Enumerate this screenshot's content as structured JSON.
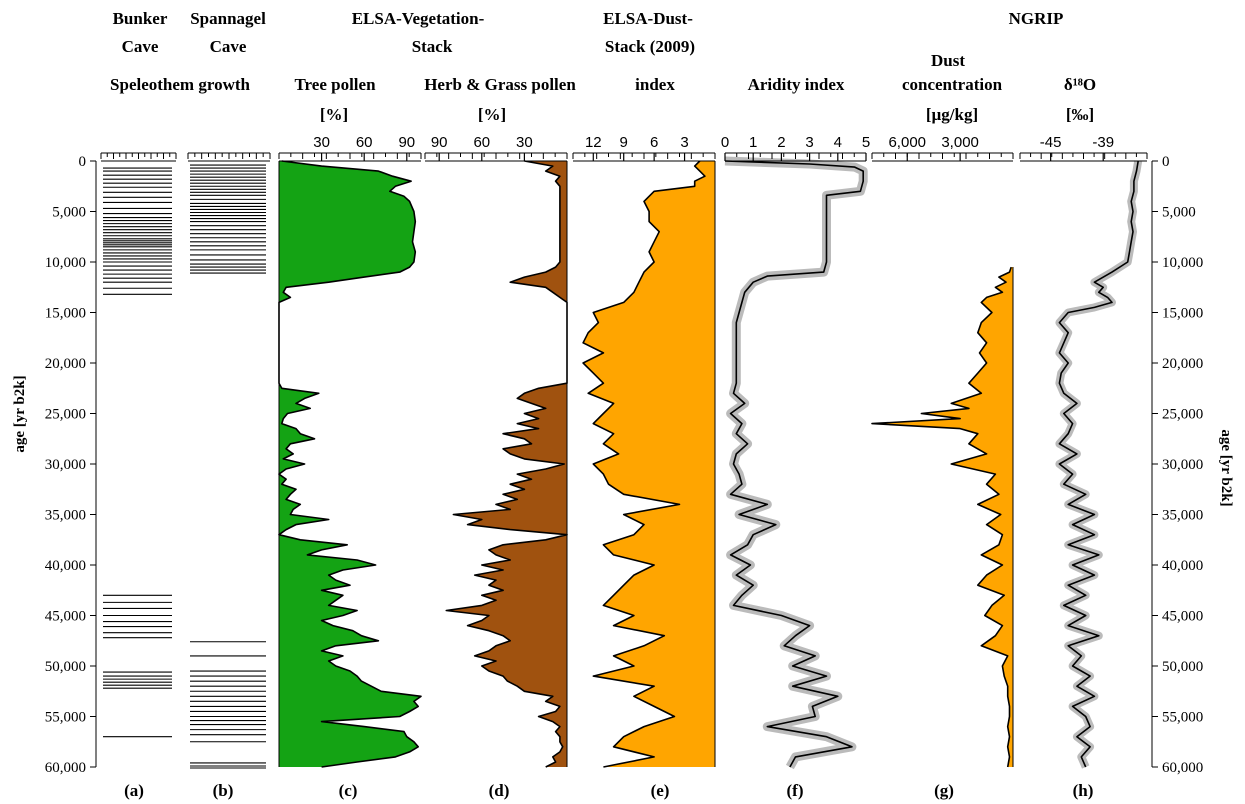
{
  "headers": {
    "bunker": [
      "Bunker",
      "Cave"
    ],
    "spannagel": [
      "Spannagel",
      "Cave"
    ],
    "elsa_veg": [
      "ELSA-Vegetation-",
      "Stack"
    ],
    "elsa_dust": [
      "ELSA-Dust-",
      "Stack (2009)"
    ],
    "ngrip": "NGRIP",
    "speleothem": "Speleothem growth",
    "tree": "Tree pollen",
    "herb": "Herb & Grass pollen",
    "index": "index",
    "aridity": "Aridity index",
    "dust": [
      "Dust",
      "concentration"
    ],
    "d18o": "δ¹⁸O"
  },
  "units": {
    "tree": "[%]",
    "herb": "[%]",
    "dust": "[µg/kg]",
    "d18o": "[‰]"
  },
  "age_axis": {
    "left_title": "age [yr b2k]",
    "right_title": "age [yr b2k]",
    "ticks": [
      "0",
      "5,000",
      "10,000",
      "15,000",
      "20,000",
      "25,000",
      "30,000",
      "35,000",
      "40,000",
      "45,000",
      "50,000",
      "55,000",
      "60,000"
    ]
  },
  "panel_labels": [
    "(a)",
    "(b)",
    "(c)",
    "(d)",
    "(e)",
    "(f)",
    "(g)",
    "(h)"
  ],
  "colors": {
    "tree_fill": "#14a314",
    "herb_fill": "#a0520f",
    "dust_fill": "#ffa500",
    "aridity_band": "#bbbbbb",
    "d18o_band": "#bbbbbb",
    "line": "#000000"
  },
  "chart_data": [
    {
      "type": "stripe",
      "panel": "(a)",
      "title": "Bunker Cave",
      "subtitle": "Speleothem growth",
      "growth_ages": [
        700,
        1000,
        1400,
        1800,
        2200,
        2600,
        3100,
        3600,
        4100,
        4700,
        5200,
        5600,
        5900,
        6200,
        6500,
        6800,
        7100,
        7400,
        7700,
        7900,
        8100,
        8300,
        8500,
        8800,
        9100,
        9400,
        9700,
        10000,
        10400,
        10800,
        11200,
        11600,
        12000,
        12600,
        13200,
        43000,
        43700,
        44300,
        45000,
        45600,
        46100,
        46700,
        47200,
        50600,
        51000,
        51300,
        51600,
        51900,
        52200,
        57000
      ]
    },
    {
      "type": "stripe",
      "panel": "(b)",
      "title": "Spannagel Cave",
      "subtitle": "Speleothem growth",
      "growth_ages": [
        400,
        700,
        1000,
        1300,
        1600,
        1900,
        2200,
        2500,
        2800,
        3100,
        3400,
        3800,
        4200,
        4500,
        4800,
        5100,
        5400,
        5700,
        6000,
        6400,
        6800,
        7200,
        7600,
        8000,
        8400,
        8800,
        9300,
        9800,
        10200,
        10500,
        10800,
        11100,
        47600,
        49000,
        50500,
        51000,
        51500,
        52000,
        52500,
        53000,
        53500,
        54000,
        54500,
        55000,
        55400,
        55800,
        56300,
        56800,
        57500,
        59600,
        59900,
        60100
      ]
    },
    {
      "type": "area",
      "panel": "(c)",
      "title": "ELSA-Vegetation-Stack",
      "subtitle": "Tree pollen",
      "unit": "[%]",
      "xlim": [
        0,
        100
      ],
      "x_ticks": [
        30,
        60,
        90
      ],
      "y_axis": "age [yr b2k]",
      "ylim": [
        0,
        60000
      ],
      "y": [
        0,
        500,
        1000,
        1500,
        2000,
        2500,
        3000,
        3500,
        4000,
        5000,
        6000,
        7000,
        8000,
        9000,
        10000,
        10500,
        11000,
        11500,
        12000,
        12500,
        13000,
        13500,
        14000,
        22000,
        22500,
        23000,
        23500,
        24000,
        24500,
        25000,
        25500,
        26000,
        26500,
        27000,
        27500,
        28000,
        28500,
        29000,
        29500,
        30000,
        30500,
        31000,
        31500,
        32000,
        32500,
        33000,
        33500,
        34000,
        34500,
        35000,
        35500,
        36000,
        36500,
        37000,
        37500,
        38000,
        38500,
        39000,
        39500,
        40000,
        40500,
        41000,
        41500,
        42000,
        42500,
        43000,
        43500,
        44000,
        44500,
        45000,
        45500,
        46000,
        46500,
        47000,
        47500,
        48000,
        48500,
        49000,
        49500,
        50000,
        50500,
        51000,
        51500,
        52000,
        52500,
        53000,
        53500,
        54000,
        54500,
        55000,
        55500,
        56000,
        56500,
        57000,
        57500,
        58000,
        58500,
        59000,
        59500,
        60000
      ],
      "values": [
        2,
        30,
        70,
        80,
        93,
        82,
        78,
        88,
        92,
        95,
        96,
        95,
        94,
        96,
        95,
        92,
        85,
        60,
        35,
        5,
        3,
        8,
        0,
        0,
        2,
        28,
        18,
        12,
        22,
        6,
        3,
        2,
        12,
        15,
        25,
        8,
        5,
        10,
        3,
        18,
        5,
        0,
        5,
        2,
        12,
        8,
        5,
        15,
        10,
        8,
        35,
        12,
        5,
        0,
        15,
        48,
        30,
        20,
        55,
        68,
        45,
        35,
        40,
        50,
        30,
        45,
        40,
        35,
        55,
        45,
        30,
        38,
        52,
        58,
        70,
        40,
        30,
        45,
        35,
        40,
        50,
        55,
        58,
        65,
        72,
        100,
        95,
        98,
        92,
        85,
        30,
        60,
        88,
        90,
        95,
        98,
        92,
        82,
        55,
        30
      ]
    },
    {
      "type": "area",
      "panel": "(d)",
      "title": "ELSA-Vegetation-Stack",
      "subtitle": "Herb & Grass pollen",
      "unit": "[%]",
      "xlim": [
        100,
        0
      ],
      "x_ticks": [
        90,
        60,
        30
      ],
      "y_axis": "age [yr b2k]",
      "ylim": [
        0,
        60000
      ],
      "y": [
        0,
        500,
        1000,
        1500,
        2000,
        2500,
        3000,
        4000,
        6000,
        8000,
        10000,
        10500,
        11000,
        11500,
        12000,
        12500,
        13000,
        13500,
        14000,
        22000,
        22500,
        23000,
        23500,
        24000,
        24500,
        25000,
        25500,
        26000,
        26500,
        27000,
        27500,
        28000,
        28500,
        29000,
        29500,
        30000,
        30500,
        31000,
        31500,
        32000,
        32500,
        33000,
        33500,
        34000,
        34500,
        35000,
        35500,
        36000,
        36500,
        37000,
        37500,
        38000,
        38500,
        39000,
        39500,
        40000,
        40500,
        41000,
        41500,
        42000,
        42500,
        43000,
        43500,
        44000,
        44500,
        45000,
        45500,
        46000,
        46500,
        47000,
        47500,
        48000,
        48500,
        49000,
        49500,
        50000,
        50500,
        51000,
        51500,
        52000,
        52500,
        53000,
        53500,
        54000,
        54500,
        55000,
        55500,
        56000,
        56500,
        57000,
        57500,
        58000,
        58500,
        59000,
        59500,
        60000
      ],
      "values": [
        30,
        10,
        15,
        5,
        8,
        5,
        5,
        5,
        5,
        5,
        5,
        8,
        15,
        30,
        40,
        15,
        10,
        5,
        0,
        0,
        20,
        30,
        35,
        25,
        15,
        30,
        20,
        35,
        20,
        45,
        30,
        25,
        45,
        40,
        30,
        2,
        15,
        35,
        25,
        40,
        30,
        45,
        35,
        50,
        40,
        80,
        60,
        70,
        40,
        0,
        15,
        45,
        55,
        50,
        40,
        60,
        45,
        65,
        50,
        55,
        45,
        60,
        50,
        60,
        85,
        55,
        60,
        70,
        55,
        45,
        40,
        50,
        55,
        65,
        50,
        60,
        55,
        45,
        42,
        35,
        30,
        10,
        15,
        5,
        8,
        20,
        10,
        5,
        8,
        5,
        5,
        3,
        5,
        10,
        8,
        15
      ]
    },
    {
      "type": "area",
      "panel": "(e)",
      "title": "ELSA-Dust-Stack (2009)",
      "subtitle": "index",
      "xlim": [
        14,
        0
      ],
      "x_ticks": [
        12,
        9,
        6,
        3
      ],
      "y_axis": "age [yr b2k]",
      "ylim": [
        0,
        60000
      ],
      "y": [
        0,
        500,
        1000,
        1500,
        2000,
        2500,
        3000,
        3500,
        4000,
        5000,
        6000,
        7000,
        8000,
        9000,
        10000,
        11000,
        12000,
        13000,
        14000,
        15000,
        16000,
        17000,
        18000,
        19000,
        20000,
        21000,
        22000,
        23000,
        24000,
        25000,
        26000,
        27000,
        28000,
        29000,
        30000,
        31000,
        32000,
        33000,
        34000,
        35000,
        36000,
        37000,
        38000,
        39000,
        40000,
        41000,
        42000,
        43000,
        44000,
        45000,
        46000,
        47000,
        48000,
        49000,
        50000,
        51000,
        52000,
        53000,
        54000,
        55000,
        56000,
        57000,
        58000,
        59000,
        60000
      ],
      "values": [
        1.5,
        2,
        1.5,
        1,
        2,
        2,
        6,
        6.5,
        7,
        6.5,
        6.5,
        5.5,
        6,
        6.5,
        6,
        7,
        7.5,
        8,
        9,
        12,
        11.5,
        12.5,
        13,
        11,
        13,
        12,
        11,
        12.5,
        10,
        11,
        12,
        10,
        11,
        9.5,
        12,
        11,
        10.5,
        9,
        3.5,
        9,
        7,
        8,
        11,
        10,
        6,
        8,
        9,
        10,
        11,
        8,
        10,
        5,
        7,
        10,
        8,
        12,
        6,
        8,
        6,
        4,
        7,
        9,
        10,
        6,
        11
      ]
    },
    {
      "type": "line",
      "panel": "(f)",
      "subtitle": "Aridity index",
      "xlim": [
        0,
        5
      ],
      "x_ticks": [
        0,
        1,
        2,
        3,
        4,
        5
      ],
      "y_axis": "age [yr b2k]",
      "ylim": [
        0,
        60000
      ],
      "y": [
        0,
        300,
        600,
        1000,
        2000,
        3000,
        3400,
        4000,
        6000,
        8000,
        10000,
        11000,
        11400,
        12000,
        13000,
        14000,
        15000,
        16000,
        18000,
        20000,
        22000,
        23000,
        24000,
        25000,
        26000,
        27000,
        28000,
        29000,
        30000,
        31000,
        32000,
        33000,
        34000,
        35000,
        36000,
        37000,
        38000,
        39000,
        40000,
        41000,
        42000,
        43000,
        44000,
        45000,
        46000,
        47000,
        48000,
        49000,
        50000,
        51000,
        52000,
        53000,
        54000,
        55000,
        56000,
        57000,
        58000,
        59000,
        60000
      ],
      "values": [
        0,
        3,
        4.6,
        4.9,
        4.9,
        4.8,
        3.6,
        3.6,
        3.6,
        3.6,
        3.6,
        3.5,
        1.5,
        1,
        0.7,
        0.6,
        0.5,
        0.4,
        0.4,
        0.4,
        0.4,
        0.3,
        0.7,
        0.2,
        0.6,
        0.4,
        0.8,
        0.4,
        0.3,
        0.5,
        0.6,
        0.2,
        1.5,
        0.5,
        1.8,
        1,
        0.8,
        0.2,
        0.9,
        0.4,
        1,
        0.6,
        0.3,
        2,
        3,
        2.5,
        2.1,
        3.2,
        2.4,
        3.6,
        2.4,
        4,
        3.1,
        3.2,
        1.5,
        3.6,
        4.5,
        2.5,
        2.3
      ]
    },
    {
      "type": "area",
      "panel": "(g)",
      "title": "NGRIP",
      "subtitle": "Dust concentration",
      "unit": "[µg/kg]",
      "xlim": [
        8000,
        0
      ],
      "x_ticks": [
        6000,
        3000
      ],
      "y_axis": "age [yr b2k]",
      "ylim": [
        10500,
        60000
      ],
      "y": [
        10500,
        11000,
        11500,
        12000,
        12500,
        13000,
        13500,
        14000,
        15000,
        16000,
        17000,
        18000,
        19000,
        20000,
        21000,
        22000,
        23000,
        24000,
        24500,
        25000,
        25500,
        26000,
        26500,
        27000,
        28000,
        29000,
        30000,
        31000,
        32000,
        33000,
        34000,
        35000,
        36000,
        37000,
        38000,
        39000,
        40000,
        41000,
        42000,
        43000,
        44000,
        45000,
        46000,
        47000,
        48000,
        49000,
        50000,
        51000,
        52000,
        53000,
        54000,
        55000,
        56000,
        57000,
        58000,
        59000,
        60000
      ],
      "values": [
        100,
        200,
        800,
        400,
        1000,
        600,
        1500,
        1800,
        1200,
        1800,
        2000,
        1500,
        1900,
        1500,
        2000,
        2500,
        1800,
        3500,
        2500,
        5200,
        3000,
        8000,
        3000,
        2000,
        2500,
        1500,
        3500,
        1000,
        1500,
        800,
        2000,
        700,
        1500,
        600,
        800,
        1800,
        600,
        1500,
        2000,
        500,
        1200,
        1600,
        600,
        1000,
        1800,
        300,
        600,
        500,
        300,
        300,
        200,
        200,
        300,
        200,
        300,
        200,
        300
      ]
    },
    {
      "type": "line",
      "panel": "(h)",
      "title": "NGRIP",
      "subtitle": "δ¹⁸O",
      "unit": "[‰]",
      "xlim": [
        -48.5,
        -34
      ],
      "x_ticks": [
        -45,
        -39
      ],
      "y_axis": "age [yr b2k]",
      "ylim": [
        0,
        60000
      ],
      "y": [
        0,
        1000,
        2000,
        3000,
        4000,
        5000,
        6000,
        7000,
        8000,
        9000,
        10000,
        11000,
        12000,
        12500,
        13000,
        13500,
        14000,
        14500,
        15000,
        16000,
        17000,
        18000,
        19000,
        20000,
        21000,
        22000,
        23000,
        24000,
        25000,
        26000,
        27000,
        28000,
        29000,
        30000,
        31000,
        32000,
        33000,
        34000,
        35000,
        36000,
        37000,
        38000,
        39000,
        40000,
        41000,
        42000,
        43000,
        44000,
        45000,
        46000,
        47000,
        48000,
        49000,
        50000,
        51000,
        52000,
        53000,
        54000,
        55000,
        56000,
        57000,
        58000,
        59000,
        60000
      ],
      "values": [
        -35,
        -35.2,
        -35.5,
        -35.5,
        -35.8,
        -35.6,
        -35.8,
        -35.6,
        -35.8,
        -36,
        -36.2,
        -38,
        -40,
        -39,
        -39.5,
        -38.5,
        -38,
        -40,
        -43,
        -44,
        -43,
        -43.5,
        -44,
        -43,
        -43.8,
        -44,
        -43.5,
        -42,
        -43.5,
        -42.5,
        -43,
        -44,
        -42,
        -44,
        -42.5,
        -43.5,
        -41,
        -43,
        -40,
        -42.5,
        -40,
        -43,
        -39.5,
        -42.5,
        -40,
        -43,
        -41,
        -43.5,
        -41,
        -43,
        -39.5,
        -43,
        -41.5,
        -42.5,
        -40.5,
        -42,
        -40,
        -42.5,
        -41,
        -40.5,
        -42,
        -40.5,
        -41.5,
        -41
      ]
    }
  ]
}
